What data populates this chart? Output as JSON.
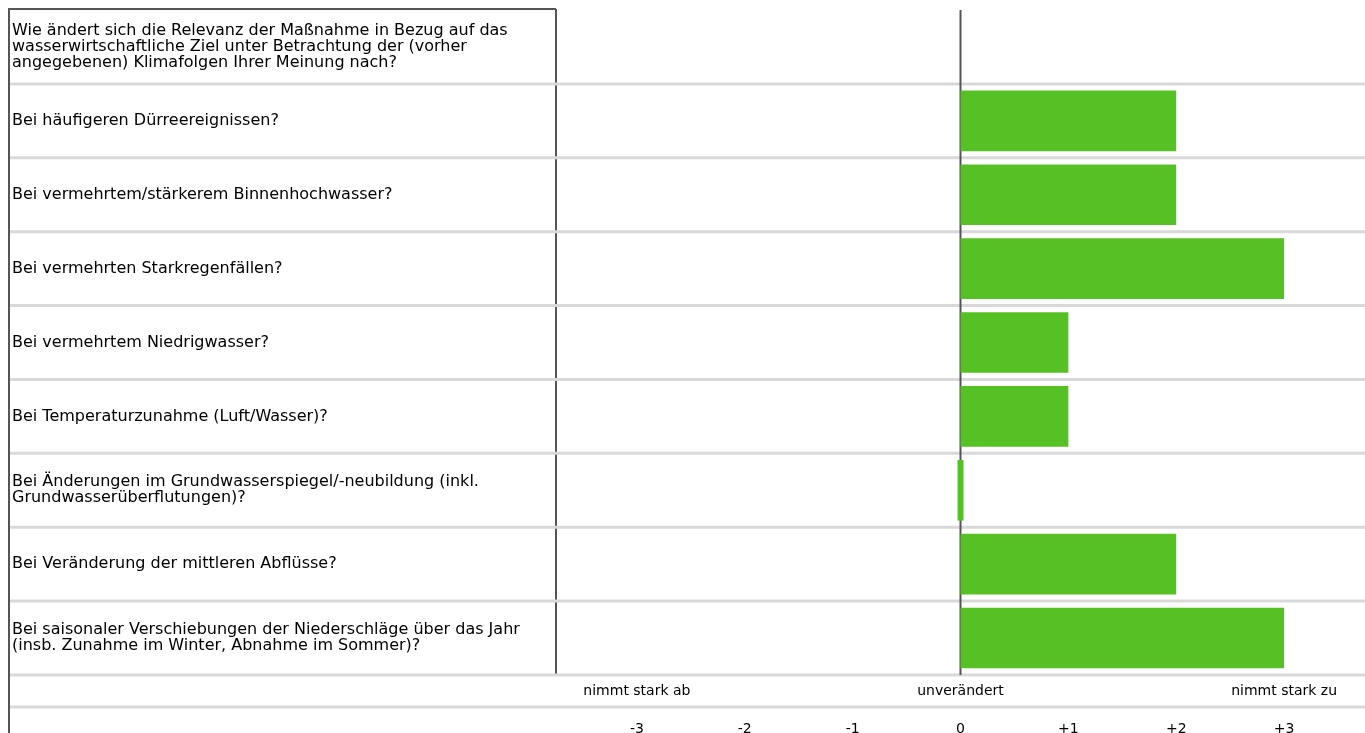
{
  "chart_data": {
    "type": "bar",
    "orientation": "horizontal",
    "categories": [
      "Wie ändert sich die Relevanz der Maßnahme in Bezug auf das wasserwirtschaftliche Ziel unter Betrachtung der (vorher angegebenen) Klimafolgen Ihrer Meinung nach?",
      "Bei häufigeren Dürreereignissen?",
      "Bei vermehrtem/stärkerem Binnenhochwasser?",
      "Bei vermehrten Starkregenfällen?",
      "Bei vermehrtem Niedrigwasser?",
      "Bei Temperaturzunahme (Luft/Wasser)?",
      "Bei Änderungen im Grundwasserspiegel/-neubildung (inkl. Grundwasserüberflutungen)?",
      "Bei Veränderung der mittleren Abflüsse?",
      "Bei saisonaler Verschiebungen der Niederschläge über das Jahr (insb. Zunahme im Winter, Abnahme im Sommer)?"
    ],
    "values": [
      null,
      2,
      2,
      3,
      1,
      1,
      0,
      2,
      3
    ],
    "color": "#56c124",
    "xlim": [
      -3.75,
      3.75
    ],
    "xticks": [
      -3,
      -2,
      -1,
      0,
      {
        "value": 1,
        "label": "+1"
      },
      {
        "value": 2,
        "label": "+2"
      },
      {
        "value": 3,
        "label": "+3"
      }
    ],
    "annotations": [
      "nimmt stark ab",
      "unverändert",
      "nimmt stark zu"
    ],
    "ref_lines": [
      {
        "axis": "x",
        "value": 0,
        "color": "#555555"
      }
    ],
    "grid": "y"
  }
}
